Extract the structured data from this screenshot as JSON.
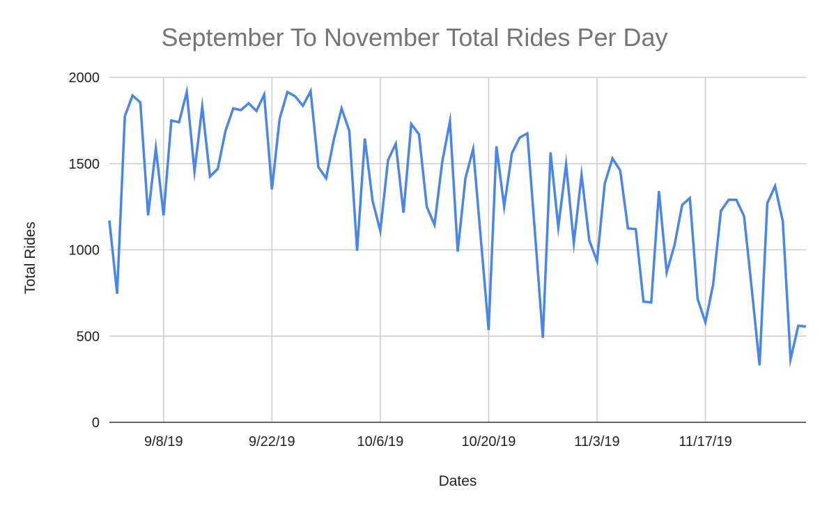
{
  "chart_data": {
    "type": "line",
    "title": "September To November Total Rides Per Day",
    "xlabel": "Dates",
    "ylabel": "Total Rides",
    "ylim": [
      0,
      2000
    ],
    "yticks": [
      0,
      500,
      1000,
      1500,
      2000
    ],
    "xlim": [
      "2019-09-01",
      "2019-11-30"
    ],
    "xticks": [
      {
        "date": "2019-09-08",
        "label": "9/8/19"
      },
      {
        "date": "2019-09-22",
        "label": "9/22/19"
      },
      {
        "date": "2019-10-06",
        "label": "10/6/19"
      },
      {
        "date": "2019-10-20",
        "label": "10/20/19"
      },
      {
        "date": "2019-11-03",
        "label": "11/3/19"
      },
      {
        "date": "2019-11-17",
        "label": "11/17/19"
      }
    ],
    "grid": true,
    "colors": {
      "series": "#4a86e8",
      "grid": "#cccccc",
      "axis": "#333333"
    },
    "series": [
      {
        "x": [
          "2019-09-01",
          "2019-09-02",
          "2019-09-03",
          "2019-09-04",
          "2019-09-05",
          "2019-09-06",
          "2019-09-07",
          "2019-09-08",
          "2019-09-09",
          "2019-09-10",
          "2019-09-11",
          "2019-09-12",
          "2019-09-13",
          "2019-09-14",
          "2019-09-15",
          "2019-09-16",
          "2019-09-17",
          "2019-09-18",
          "2019-09-19",
          "2019-09-20",
          "2019-09-21",
          "2019-09-22",
          "2019-09-23",
          "2019-09-24",
          "2019-09-25",
          "2019-09-26",
          "2019-09-27",
          "2019-09-28",
          "2019-09-29",
          "2019-09-30",
          "2019-10-01",
          "2019-10-02",
          "2019-10-03",
          "2019-10-04",
          "2019-10-05",
          "2019-10-06",
          "2019-10-07",
          "2019-10-08",
          "2019-10-09",
          "2019-10-10",
          "2019-10-11",
          "2019-10-12",
          "2019-10-13",
          "2019-10-14",
          "2019-10-15",
          "2019-10-16",
          "2019-10-17",
          "2019-10-18",
          "2019-10-19",
          "2019-10-20",
          "2019-10-21",
          "2019-10-22",
          "2019-10-23",
          "2019-10-24",
          "2019-10-25",
          "2019-10-26",
          "2019-10-27",
          "2019-10-28",
          "2019-10-29",
          "2019-10-30",
          "2019-10-31",
          "2019-11-01",
          "2019-11-02",
          "2019-11-03",
          "2019-11-04",
          "2019-11-05",
          "2019-11-06",
          "2019-11-07",
          "2019-11-08",
          "2019-11-09",
          "2019-11-10",
          "2019-11-11",
          "2019-11-12",
          "2019-11-13",
          "2019-11-14",
          "2019-11-15",
          "2019-11-16",
          "2019-11-17",
          "2019-11-18",
          "2019-11-19",
          "2019-11-20",
          "2019-11-21",
          "2019-11-22",
          "2019-11-23",
          "2019-11-24",
          "2019-11-25",
          "2019-11-26",
          "2019-11-27",
          "2019-11-28",
          "2019-11-29",
          "2019-11-30"
        ],
        "values": [
          1170,
          745,
          1775,
          1895,
          1855,
          1200,
          1590,
          1200,
          1750,
          1740,
          1915,
          1455,
          1830,
          1425,
          1470,
          1690,
          1820,
          1810,
          1850,
          1805,
          1900,
          1350,
          1760,
          1915,
          1890,
          1835,
          1920,
          1480,
          1415,
          1640,
          1820,
          1690,
          995,
          1645,
          1285,
          1110,
          1520,
          1615,
          1215,
          1730,
          1670,
          1250,
          1145,
          1510,
          1745,
          990,
          1415,
          1585,
          1060,
          535,
          1600,
          1250,
          1560,
          1650,
          1675,
          1090,
          490,
          1565,
          1130,
          1495,
          1040,
          1435,
          1055,
          935,
          1385,
          1530,
          1460,
          1125,
          1120,
          700,
          695,
          1340,
          870,
          1025,
          1260,
          1300,
          715,
          580,
          800,
          1225,
          1290,
          1290,
          1195,
          770,
          330,
          1270,
          1370,
          1165,
          365,
          560,
          555
        ]
      }
    ]
  }
}
